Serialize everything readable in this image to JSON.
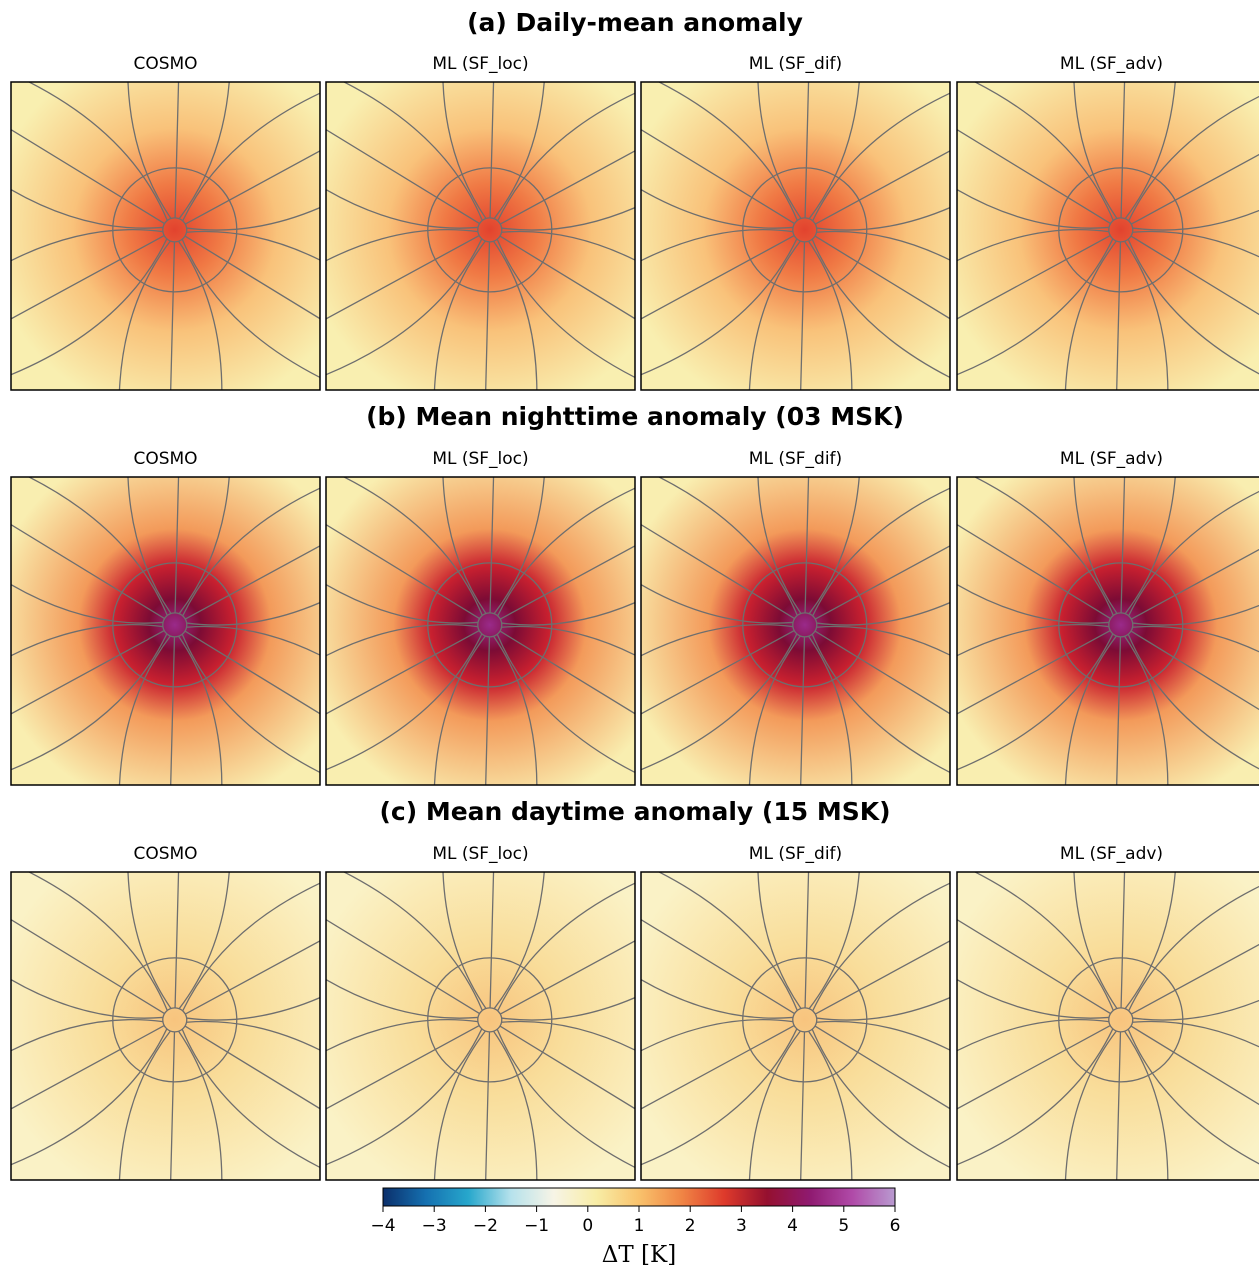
{
  "chart_data": [
    {
      "type": "heatmap",
      "title": "(a) Daily-mean anomaly",
      "panels": [
        "COSMO",
        "ML (SF_loc)",
        "ML (SF_dif)",
        "ML (SF_adv)"
      ]
    },
    {
      "type": "heatmap",
      "title": "(b) Mean nighttime anomaly (03 MSK)",
      "panels": [
        "COSMO",
        "ML (SF_loc)",
        "ML (SF_dif)",
        "ML (SF_adv)"
      ]
    },
    {
      "type": "heatmap",
      "title": "(c) Mean daytime anomaly (15 MSK)",
      "panels": [
        "COSMO",
        "ML (SF_loc)",
        "ML (SF_dif)",
        "ML (SF_adv)"
      ]
    }
  ],
  "colorbar": {
    "label": "ΔT [K]",
    "xlim": [
      -4,
      6
    ],
    "xticks": [
      {
        "value": -4,
        "label": "−4"
      },
      {
        "value": -3,
        "label": "−3"
      },
      {
        "value": -2,
        "label": "−2"
      },
      {
        "value": -1,
        "label": "−1"
      },
      0,
      1,
      2,
      3,
      4,
      5,
      6
    ],
    "colors": [
      "#0b2f6b",
      "#1570b0",
      "#27a7cc",
      "#b6e2ec",
      "#f7f4e6",
      "#f8eda6",
      "#f9c26c",
      "#f08545",
      "#de3a2b",
      "#95102f",
      "#8f1a70",
      "#b04aa8",
      "#b99ad0"
    ]
  }
}
